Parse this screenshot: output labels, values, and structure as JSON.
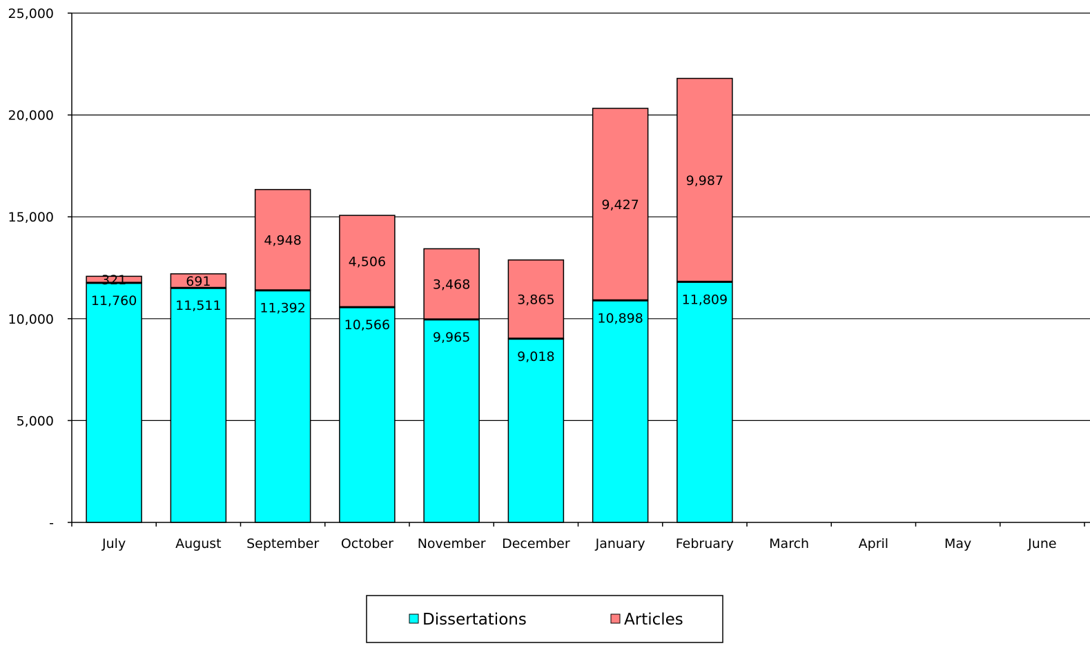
{
  "chart_data": {
    "type": "bar",
    "stacked": true,
    "categories": [
      "July",
      "August",
      "September",
      "October",
      "November",
      "December",
      "January",
      "February",
      "March",
      "April",
      "May",
      "June"
    ],
    "series": [
      {
        "name": "Dissertations",
        "color": "#00FFFF",
        "values": [
          11760,
          11511,
          11392,
          10566,
          9965,
          9018,
          10898,
          11809,
          null,
          null,
          null,
          null
        ],
        "labels": [
          "11,760",
          "11,511",
          "11,392",
          "10,566",
          "9,965",
          "9,018",
          "10,898",
          "11,809",
          "",
          "",
          "",
          ""
        ]
      },
      {
        "name": "Articles",
        "color": "#FF8080",
        "values": [
          321,
          691,
          4948,
          4506,
          3468,
          3865,
          9427,
          9987,
          null,
          null,
          null,
          null
        ],
        "labels": [
          "321",
          "691",
          "4,948",
          "4,506",
          "3,468",
          "3,865",
          "9,427",
          "9,987",
          "",
          "",
          "",
          ""
        ]
      }
    ],
    "y_ticks": [
      {
        "value": 0,
        "label": "-"
      },
      {
        "value": 5000,
        "label": "5,000"
      },
      {
        "value": 10000,
        "label": "10,000"
      },
      {
        "value": 15000,
        "label": "15,000"
      },
      {
        "value": 20000,
        "label": "20,000"
      },
      {
        "value": 25000,
        "label": "25,000"
      }
    ],
    "ylim": [
      0,
      25000
    ],
    "grid": true,
    "legend": {
      "position": "bottom-center",
      "entries": [
        "Dissertations",
        "Articles"
      ]
    }
  }
}
